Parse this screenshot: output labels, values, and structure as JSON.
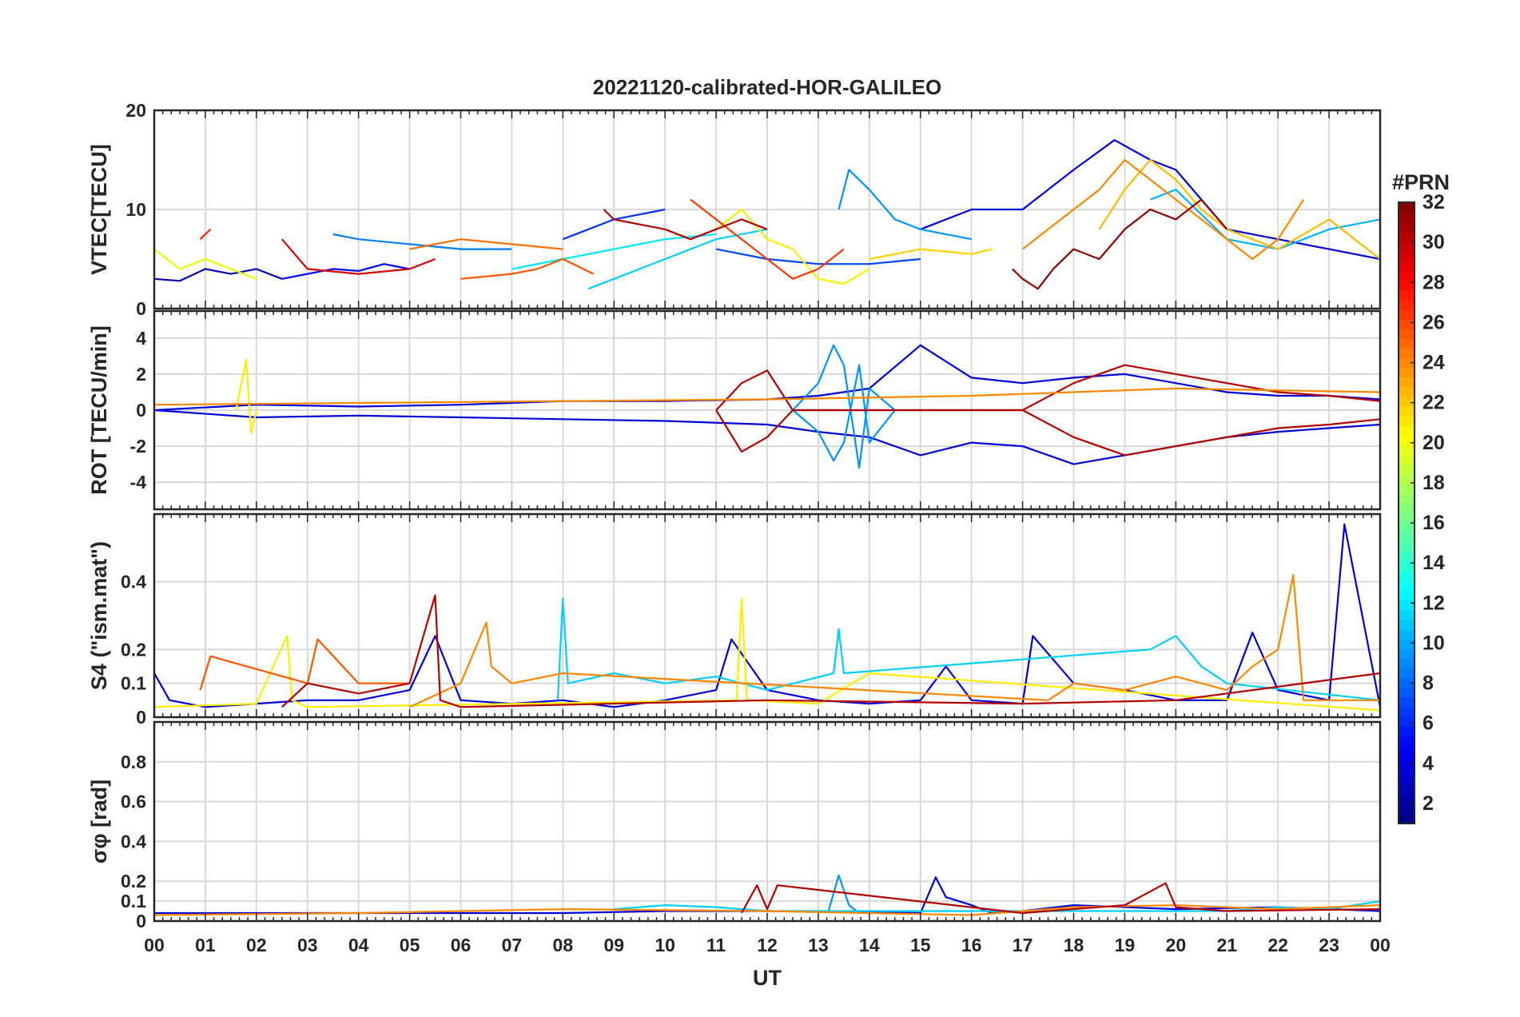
{
  "title": "20221120-calibrated-HOR-GALILEO",
  "xlabel": "UT",
  "x_ticks": [
    "00",
    "01",
    "02",
    "03",
    "04",
    "05",
    "06",
    "07",
    "08",
    "09",
    "10",
    "11",
    "12",
    "13",
    "14",
    "15",
    "16",
    "17",
    "18",
    "19",
    "20",
    "21",
    "22",
    "23",
    "00"
  ],
  "colorbar": {
    "label": "#PRN",
    "range": [
      1,
      32
    ],
    "ticks": [
      "2",
      "4",
      "6",
      "8",
      "10",
      "12",
      "14",
      "16",
      "18",
      "20",
      "22",
      "24",
      "26",
      "28",
      "30",
      "32"
    ],
    "colormap": "jet"
  },
  "chart_data": [
    {
      "id": "vtec",
      "type": "line",
      "ylabel": "VTEC[TECU]",
      "ylim": [
        0,
        20
      ],
      "y_ticks": [
        "0",
        "10",
        "20"
      ],
      "x_unit": "hours UT",
      "grid": true,
      "series": [
        {
          "prn": 2,
          "color": "#0000b3",
          "x": [
            0,
            0.5,
            1,
            1.5,
            2,
            2.5
          ],
          "y": [
            3,
            2.8,
            4,
            3.5,
            4,
            3
          ]
        },
        {
          "prn": 4,
          "color": "#0000ff",
          "x": [
            2.5,
            3,
            3.5,
            4,
            4.5,
            5
          ],
          "y": [
            3,
            3.5,
            4,
            3.8,
            4.5,
            4
          ]
        },
        {
          "prn": 5,
          "color": "#0033ff",
          "x": [
            8,
            9,
            10
          ],
          "y": [
            7,
            9,
            10
          ]
        },
        {
          "prn": 3,
          "color": "#0000d9",
          "x": [
            15,
            16,
            17,
            18,
            18.8,
            19.5,
            20,
            21,
            22,
            23,
            24
          ],
          "y": [
            8,
            10,
            10,
            14,
            17,
            15,
            14,
            8,
            7,
            6,
            5
          ]
        },
        {
          "prn": 6,
          "color": "#0047ff",
          "x": [
            11,
            12,
            13,
            14,
            15
          ],
          "y": [
            6,
            5,
            4.5,
            4.5,
            5
          ]
        },
        {
          "prn": 9,
          "color": "#0096ff",
          "x": [
            13.4,
            13.6,
            14,
            14.5,
            15,
            16
          ],
          "y": [
            10,
            14,
            12,
            9,
            8,
            7
          ]
        },
        {
          "prn": 8,
          "color": "#007fff",
          "x": [
            3.5,
            4,
            5,
            6,
            7
          ],
          "y": [
            7.5,
            7,
            6.5,
            6,
            6
          ]
        },
        {
          "prn": 12,
          "color": "#00cfff",
          "x": [
            8.5,
            9,
            10,
            11,
            12
          ],
          "y": [
            2,
            3,
            5,
            7,
            8
          ]
        },
        {
          "prn": 11,
          "color": "#00b3ff",
          "x": [
            19.5,
            20,
            21,
            22,
            23,
            24
          ],
          "y": [
            11,
            12,
            7,
            6,
            8,
            9
          ]
        },
        {
          "prn": 13,
          "color": "#00e6ff",
          "x": [
            7,
            8,
            9,
            10,
            11
          ],
          "y": [
            4,
            5,
            6,
            7,
            7.5
          ]
        },
        {
          "prn": 19,
          "color": "#e6ff00",
          "x": [
            0,
            0.5,
            1,
            1.5,
            2
          ],
          "y": [
            6,
            4,
            5,
            4,
            3
          ]
        },
        {
          "prn": 20,
          "color": "#ffee00",
          "x": [
            11,
            11.5,
            12,
            12.5,
            13,
            13.5,
            14
          ],
          "y": [
            8,
            10,
            7,
            6,
            3,
            2.5,
            4
          ]
        },
        {
          "prn": 21,
          "color": "#ffd400",
          "x": [
            14,
            15,
            16,
            16.4
          ],
          "y": [
            5,
            6,
            5.5,
            6
          ]
        },
        {
          "prn": 22,
          "color": "#ffbb00",
          "x": [
            18.5,
            19,
            19.5,
            20,
            20.5,
            21,
            21.5,
            22,
            23,
            24
          ],
          "y": [
            8,
            12,
            15,
            13,
            10,
            8,
            7,
            6,
            9,
            5
          ]
        },
        {
          "prn": 24,
          "color": "#ff8800",
          "x": [
            17,
            17.5,
            18,
            18.5,
            19,
            19.5,
            20,
            21,
            21.5,
            22,
            22.5
          ],
          "y": [
            6,
            8,
            10,
            12,
            15,
            13,
            11,
            7,
            5,
            7,
            11
          ]
        },
        {
          "prn": 25,
          "color": "#ff6f00",
          "x": [
            5,
            6,
            7,
            8
          ],
          "y": [
            6,
            7,
            6.5,
            6
          ]
        },
        {
          "prn": 26,
          "color": "#ff5500",
          "x": [
            6,
            7,
            7.5,
            8,
            8.6
          ],
          "y": [
            3,
            3.5,
            4,
            5,
            3.5
          ]
        },
        {
          "prn": 27,
          "color": "#ff3a00",
          "x": [
            10.5,
            11,
            11.5,
            12,
            12.5,
            13,
            13.5
          ],
          "y": [
            11,
            9,
            7,
            5,
            3,
            4,
            6
          ]
        },
        {
          "prn": 28,
          "color": "#ff2200",
          "x": [
            0.9,
            1.1
          ],
          "y": [
            7,
            8
          ]
        },
        {
          "prn": 30,
          "color": "#d90000",
          "x": [
            2.5,
            3,
            4,
            5,
            5.5
          ],
          "y": [
            7,
            4,
            3.5,
            4,
            5
          ]
        },
        {
          "prn": 31,
          "color": "#b30000",
          "x": [
            8.8,
            9,
            10,
            10.5,
            11,
            11.5,
            12
          ],
          "y": [
            10,
            9,
            8,
            7,
            8,
            9,
            8
          ]
        },
        {
          "prn": 32,
          "color": "#8c0000",
          "x": [
            16.8,
            17,
            17.3,
            17.6,
            18,
            18.5,
            19,
            19.5,
            20,
            20.5,
            21
          ],
          "y": [
            4,
            3,
            2,
            4,
            6,
            5,
            8,
            10,
            9,
            11,
            8
          ]
        }
      ]
    },
    {
      "id": "rot",
      "type": "line",
      "ylabel": "ROT [TECU/min]",
      "ylim": [
        -5.5,
        5.5
      ],
      "y_ticks": [
        "-4",
        "-2",
        "0",
        "2",
        "4"
      ],
      "grid": true,
      "series": [
        {
          "prn": 3,
          "color": "#0000d9",
          "x": [
            0,
            2,
            4,
            6,
            8,
            10,
            12,
            13,
            14,
            15,
            16,
            17,
            18,
            19,
            20,
            21,
            22,
            23,
            24
          ],
          "y": [
            0,
            0.3,
            0.2,
            0.3,
            0.5,
            0.5,
            0.6,
            0.8,
            1.2,
            3.6,
            1.8,
            1.5,
            1.8,
            2.0,
            1.5,
            1.0,
            0.8,
            0.8,
            0.6
          ]
        },
        {
          "prn": 3,
          "color": "#0000d9",
          "x": [
            0,
            2,
            4,
            6,
            8,
            10,
            12,
            13,
            14,
            15,
            16,
            17,
            18,
            19,
            20,
            21,
            22,
            23,
            24
          ],
          "y": [
            0,
            -0.4,
            -0.3,
            -0.4,
            -0.5,
            -0.6,
            -0.8,
            -1.2,
            -1.5,
            -2.5,
            -1.8,
            -2.0,
            -3.0,
            -2.5,
            -2.0,
            -1.5,
            -1.2,
            -1.0,
            -0.8
          ]
        },
        {
          "prn": 9,
          "color": "#0096ff",
          "x": [
            12.5,
            13,
            13.3,
            13.5,
            13.8,
            14,
            14.5
          ],
          "y": [
            0,
            1.5,
            3.6,
            2.5,
            -3.2,
            1.2,
            0
          ]
        },
        {
          "prn": 9,
          "color": "#0096ff",
          "x": [
            12.5,
            13,
            13.3,
            13.5,
            13.8,
            14,
            14.5
          ],
          "y": [
            0,
            -1.2,
            -2.8,
            -1.8,
            2.5,
            -1.8,
            0
          ]
        },
        {
          "prn": 20,
          "color": "#ffee00",
          "x": [
            1.6,
            1.8,
            1.9,
            2.0
          ],
          "y": [
            0,
            2.8,
            -1.3,
            0
          ]
        },
        {
          "prn": 32,
          "color": "#b30000",
          "x": [
            11,
            11.5,
            12,
            12.5,
            17,
            18,
            19,
            20,
            21,
            22,
            23,
            24
          ],
          "y": [
            0,
            1.5,
            2.2,
            0,
            0,
            1.5,
            2.5,
            2.0,
            1.5,
            1.0,
            0.8,
            0.5
          ]
        },
        {
          "prn": 32,
          "color": "#b30000",
          "x": [
            11,
            11.5,
            12,
            12.5,
            17,
            18,
            19,
            20,
            21,
            22,
            23,
            24
          ],
          "y": [
            0,
            -2.3,
            -1.5,
            0,
            0,
            -1.5,
            -2.5,
            -2.0,
            -1.5,
            -1.0,
            -0.8,
            -0.5
          ]
        },
        {
          "prn": 24,
          "color": "#ff8800",
          "x": [
            0,
            4,
            8,
            12,
            16,
            20,
            24
          ],
          "y": [
            0.3,
            0.4,
            0.5,
            0.6,
            0.8,
            1.2,
            1.0
          ]
        }
      ]
    },
    {
      "id": "s4",
      "type": "line",
      "ylabel": "S4 (\"ism.mat\")",
      "ylim": [
        0,
        0.6
      ],
      "y_ticks": [
        "0",
        "0.1",
        "0.2",
        "0.4"
      ],
      "grid": true,
      "series": [
        {
          "prn": 3,
          "color": "#0000d9",
          "x": [
            0,
            0.3,
            1,
            2,
            3,
            4,
            5,
            5.5,
            6,
            7,
            8,
            9,
            10,
            11,
            11.3,
            12,
            13,
            14,
            15,
            15.5,
            16,
            17,
            17.2,
            18,
            19,
            20,
            21,
            21.5,
            22,
            23,
            23.3,
            24
          ],
          "y": [
            0.13,
            0.05,
            0.03,
            0.04,
            0.05,
            0.05,
            0.08,
            0.24,
            0.05,
            0.04,
            0.05,
            0.03,
            0.05,
            0.08,
            0.23,
            0.08,
            0.05,
            0.04,
            0.05,
            0.15,
            0.05,
            0.04,
            0.24,
            0.1,
            0.08,
            0.05,
            0.05,
            0.25,
            0.08,
            0.05,
            0.57,
            0.03
          ]
        },
        {
          "prn": 12,
          "color": "#00cfff",
          "x": [
            7.9,
            8,
            8.1,
            9,
            10,
            11,
            12,
            13.3,
            13.4,
            13.5,
            19.5,
            20,
            20.5,
            21,
            24
          ],
          "y": [
            0.05,
            0.35,
            0.1,
            0.13,
            0.1,
            0.12,
            0.08,
            0.13,
            0.26,
            0.13,
            0.2,
            0.24,
            0.15,
            0.1,
            0.05
          ]
        },
        {
          "prn": 20,
          "color": "#ffee00",
          "x": [
            0,
            2,
            2.6,
            2.7,
            3,
            11.4,
            11.5,
            11.6,
            13,
            14,
            24
          ],
          "y": [
            0.03,
            0.04,
            0.24,
            0.05,
            0.03,
            0.05,
            0.35,
            0.05,
            0.04,
            0.13,
            0.02
          ]
        },
        {
          "prn": 24,
          "color": "#ff8800",
          "x": [
            5,
            6,
            6.5,
            6.6,
            7,
            8,
            17.5,
            18,
            19,
            20,
            21,
            21.5,
            22,
            22.3,
            22.5,
            24
          ],
          "y": [
            0.03,
            0.1,
            0.28,
            0.15,
            0.1,
            0.13,
            0.05,
            0.1,
            0.08,
            0.12,
            0.08,
            0.15,
            0.2,
            0.42,
            0.05,
            0.05
          ]
        },
        {
          "prn": 26,
          "color": "#ff5500",
          "x": [
            0.9,
            1.1,
            3,
            3.2,
            4,
            5
          ],
          "y": [
            0.08,
            0.18,
            0.1,
            0.23,
            0.1,
            0.1
          ]
        },
        {
          "prn": 31,
          "color": "#b30000",
          "x": [
            2.5,
            3,
            4,
            5,
            5.5,
            5.6,
            6,
            12,
            17,
            20,
            24
          ],
          "y": [
            0.03,
            0.1,
            0.07,
            0.1,
            0.36,
            0.05,
            0.03,
            0.05,
            0.04,
            0.05,
            0.13
          ]
        }
      ]
    },
    {
      "id": "sigma_phi",
      "type": "line",
      "ylabel": "σφ [rad]",
      "ylim": [
        0,
        1
      ],
      "y_ticks": [
        "0",
        "0.1",
        "0.2",
        "0.4",
        "0.6",
        "0.8"
      ],
      "grid": true,
      "series": [
        {
          "prn": 3,
          "color": "#0000d9",
          "x": [
            0,
            4,
            8,
            10,
            12,
            15,
            15.3,
            15.5,
            16,
            16.4,
            17,
            18,
            20,
            22,
            24
          ],
          "y": [
            0.04,
            0.04,
            0.04,
            0.05,
            0.05,
            0.04,
            0.22,
            0.12,
            0.08,
            0.04,
            0.05,
            0.08,
            0.06,
            0.07,
            0.05
          ]
        },
        {
          "prn": 9,
          "color": "#0096ff",
          "x": [
            13.2,
            13.4,
            13.6,
            13.8
          ],
          "y": [
            0.05,
            0.23,
            0.08,
            0.04
          ]
        },
        {
          "prn": 12,
          "color": "#00cfff",
          "x": [
            9,
            10,
            11,
            12,
            21,
            22,
            23,
            24
          ],
          "y": [
            0.06,
            0.08,
            0.07,
            0.05,
            0.05,
            0.07,
            0.06,
            0.1
          ]
        },
        {
          "prn": 24,
          "color": "#ff8800",
          "x": [
            0,
            4,
            8,
            12,
            16,
            18,
            20,
            22,
            24
          ],
          "y": [
            0.03,
            0.04,
            0.06,
            0.05,
            0.03,
            0.07,
            0.08,
            0.06,
            0.08
          ]
        },
        {
          "prn": 31,
          "color": "#b30000",
          "x": [
            11.5,
            11.8,
            12,
            12.2,
            17,
            19,
            19.8,
            20,
            21,
            24
          ],
          "y": [
            0.04,
            0.18,
            0.06,
            0.18,
            0.04,
            0.08,
            0.19,
            0.07,
            0.05,
            0.06
          ]
        }
      ]
    }
  ]
}
